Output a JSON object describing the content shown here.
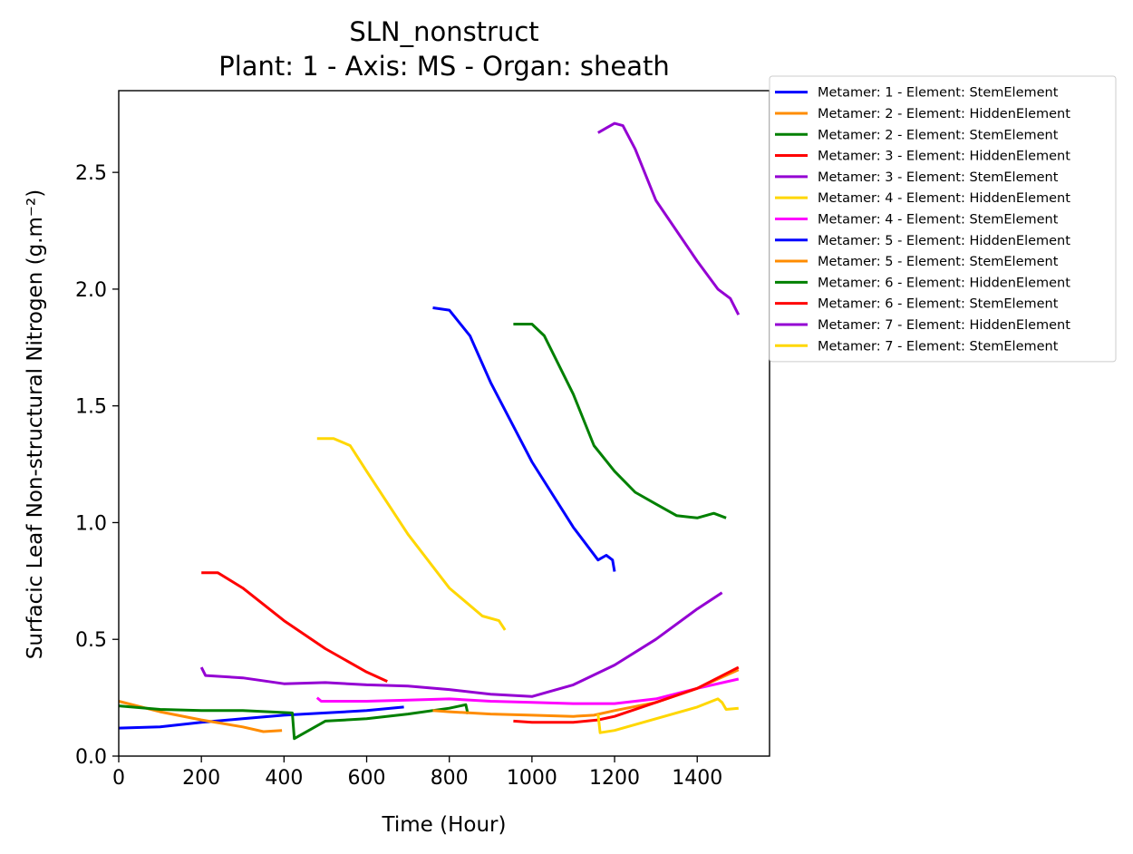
{
  "chart_data": {
    "type": "line",
    "title": "SLN_nonstruct",
    "subtitle": "Plant: 1 - Axis: MS - Organ: sheath",
    "xlabel": "Time (Hour)",
    "ylabel": "Surfacic Leaf Non-structural Nitrogen (g.m⁻²)",
    "xlim": [
      0,
      1575
    ],
    "ylim": [
      0,
      2.85
    ],
    "x_ticks": [
      0,
      200,
      400,
      600,
      800,
      1000,
      1200,
      1400
    ],
    "x_tick_labels": [
      "0",
      "200",
      "400",
      "600",
      "800",
      "1000",
      "1200",
      "1400"
    ],
    "y_ticks": [
      0,
      0.5,
      1.0,
      1.5,
      2.0,
      2.5
    ],
    "y_tick_labels": [
      "0.0",
      "0.5",
      "1.0",
      "1.5",
      "2.0",
      "2.5"
    ],
    "grid": false,
    "legend_position": "outside-top-right",
    "series": [
      {
        "name": "Metamer: 1 - Element: StemElement",
        "color": "#0000ff",
        "x": [
          0,
          100,
          200,
          300,
          400,
          500,
          600,
          690
        ],
        "y": [
          0.12,
          0.125,
          0.145,
          0.16,
          0.175,
          0.185,
          0.195,
          0.21
        ]
      },
      {
        "name": "Metamer: 2 - Element: HiddenElement",
        "color": "#ff8c00",
        "x": [
          0,
          100,
          200,
          300,
          350,
          395
        ],
        "y": [
          0.235,
          0.19,
          0.155,
          0.125,
          0.105,
          0.11
        ]
      },
      {
        "name": "Metamer: 2 - Element: StemElement",
        "color": "#008000",
        "x": [
          0,
          100,
          200,
          300,
          420,
          425,
          500,
          600,
          700,
          800,
          840,
          845
        ],
        "y": [
          0.215,
          0.2,
          0.195,
          0.195,
          0.185,
          0.075,
          0.15,
          0.16,
          0.18,
          0.205,
          0.22,
          0.18
        ]
      },
      {
        "name": "Metamer: 3 - Element: HiddenElement",
        "color": "#ff0000",
        "x": [
          200,
          240,
          300,
          400,
          500,
          600,
          650
        ],
        "y": [
          0.785,
          0.785,
          0.72,
          0.58,
          0.46,
          0.36,
          0.32
        ]
      },
      {
        "name": "Metamer: 3 - Element: StemElement",
        "color": "#9400d3",
        "x": [
          200,
          210,
          300,
          400,
          500,
          600,
          700,
          800,
          900,
          1000,
          1100,
          1200,
          1300,
          1400,
          1460
        ],
        "y": [
          0.38,
          0.345,
          0.335,
          0.31,
          0.315,
          0.305,
          0.3,
          0.285,
          0.265,
          0.255,
          0.305,
          0.39,
          0.5,
          0.63,
          0.7
        ]
      },
      {
        "name": "Metamer: 4 - Element: HiddenElement",
        "color": "#ffd700",
        "x": [
          480,
          520,
          560,
          600,
          700,
          800,
          880,
          920,
          935
        ],
        "y": [
          1.36,
          1.36,
          1.33,
          1.22,
          0.95,
          0.72,
          0.6,
          0.58,
          0.54
        ]
      },
      {
        "name": "Metamer: 4 - Element: StemElement",
        "color": "#ff00ff",
        "x": [
          480,
          490,
          600,
          700,
          800,
          900,
          1000,
          1100,
          1200,
          1300,
          1400,
          1500
        ],
        "y": [
          0.25,
          0.235,
          0.235,
          0.24,
          0.245,
          0.235,
          0.23,
          0.225,
          0.225,
          0.245,
          0.29,
          0.33
        ]
      },
      {
        "name": "Metamer: 5 - Element: HiddenElement",
        "color": "#0000ff",
        "x": [
          760,
          800,
          850,
          900,
          1000,
          1100,
          1160,
          1180,
          1195,
          1200
        ],
        "y": [
          1.92,
          1.91,
          1.8,
          1.6,
          1.26,
          0.98,
          0.84,
          0.86,
          0.84,
          0.79
        ]
      },
      {
        "name": "Metamer: 5 - Element: StemElement",
        "color": "#ff8c00",
        "x": [
          760,
          800,
          900,
          1000,
          1100,
          1150,
          1200,
          1300,
          1400,
          1500
        ],
        "y": [
          0.195,
          0.19,
          0.18,
          0.175,
          0.17,
          0.175,
          0.195,
          0.23,
          0.29,
          0.37
        ]
      },
      {
        "name": "Metamer: 6 - Element: HiddenElement",
        "color": "#008000",
        "x": [
          955,
          1000,
          1030,
          1100,
          1150,
          1200,
          1250,
          1300,
          1350,
          1400,
          1440,
          1470
        ],
        "y": [
          1.85,
          1.85,
          1.8,
          1.55,
          1.33,
          1.22,
          1.13,
          1.08,
          1.03,
          1.02,
          1.04,
          1.02
        ]
      },
      {
        "name": "Metamer: 6 - Element: StemElement",
        "color": "#ff0000",
        "x": [
          955,
          1000,
          1100,
          1160,
          1200,
          1300,
          1400,
          1500
        ],
        "y": [
          0.15,
          0.145,
          0.145,
          0.155,
          0.17,
          0.23,
          0.29,
          0.38
        ]
      },
      {
        "name": "Metamer: 7 - Element: HiddenElement",
        "color": "#9400d3",
        "x": [
          1160,
          1180,
          1200,
          1220,
          1250,
          1300,
          1350,
          1400,
          1450,
          1480,
          1500
        ],
        "y": [
          2.67,
          2.69,
          2.71,
          2.7,
          2.6,
          2.38,
          2.25,
          2.12,
          2.0,
          1.96,
          1.89
        ]
      },
      {
        "name": "Metamer: 7 - Element: StemElement",
        "color": "#ffd700",
        "x": [
          1160,
          1165,
          1200,
          1300,
          1400,
          1450,
          1460,
          1470,
          1500
        ],
        "y": [
          0.18,
          0.1,
          0.11,
          0.16,
          0.21,
          0.245,
          0.23,
          0.2,
          0.205
        ]
      }
    ]
  }
}
